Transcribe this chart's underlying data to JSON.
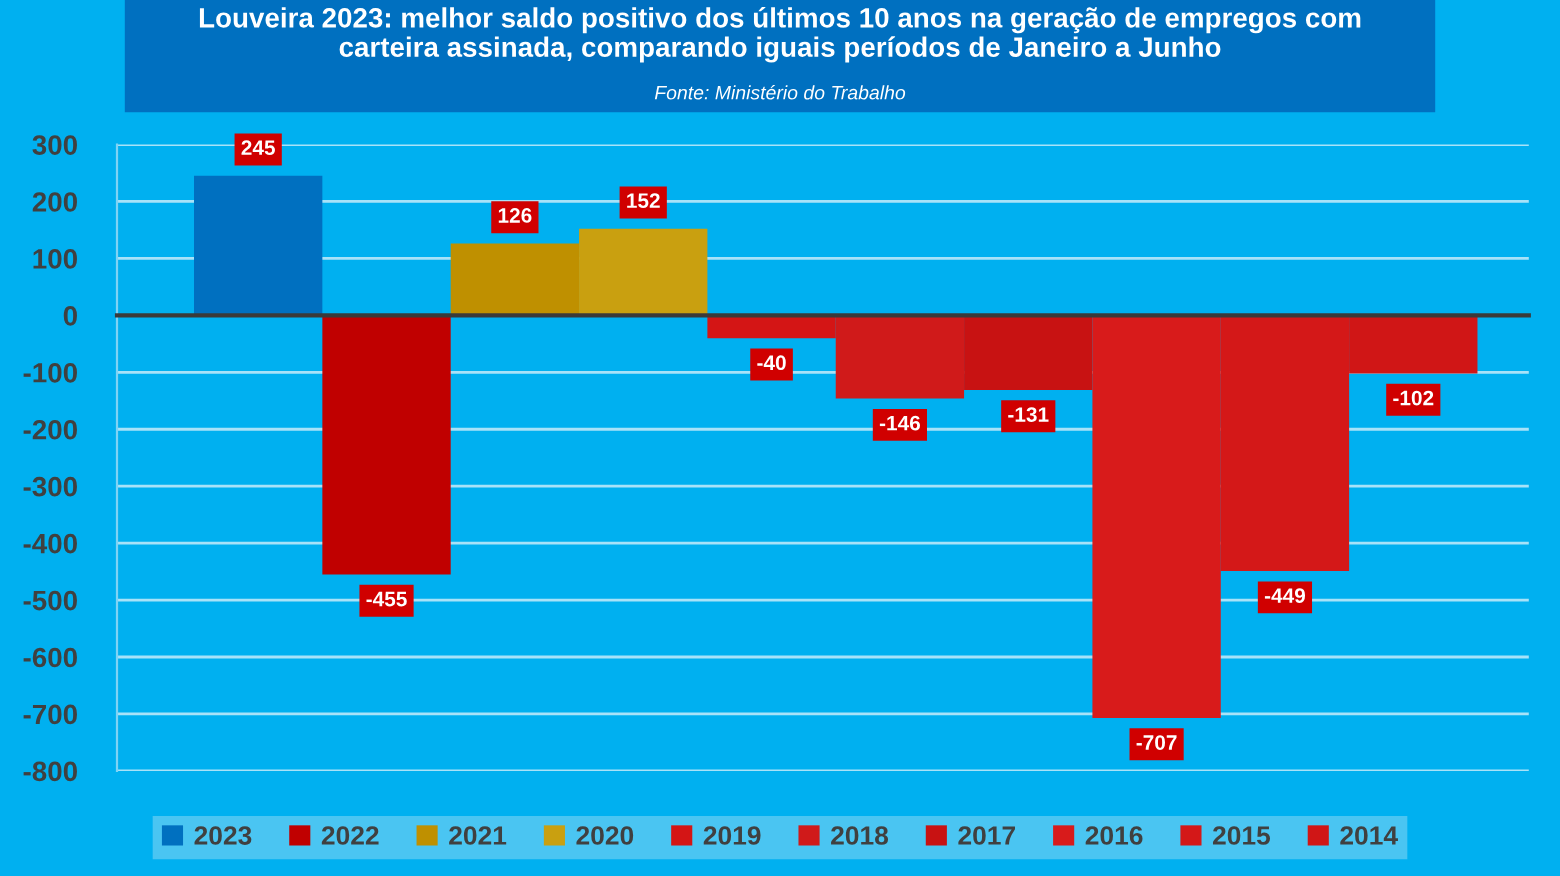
{
  "chart_data": {
    "type": "bar",
    "title": "Louveira 2023: melhor saldo positivo dos últimos 10 anos na geração de empregos com carteira assinada, comparando iguais períodos de Janeiro a Junho",
    "annotations": [
      "Fonte: Ministério do Trabalho"
    ],
    "categories": [
      null,
      null,
      null,
      null,
      null,
      null,
      null,
      null,
      null,
      null
    ],
    "series": [
      {
        "name": "2023",
        "color": "#0070c0",
        "values": [
          245,
          null,
          null,
          null,
          null,
          null,
          null,
          null,
          null,
          null
        ]
      },
      {
        "name": "2022",
        "color": "#c00000",
        "values": [
          null,
          -455,
          null,
          null,
          null,
          null,
          null,
          null,
          null,
          null
        ]
      },
      {
        "name": "2021",
        "color": "#bf9000",
        "values": [
          null,
          null,
          126,
          null,
          null,
          null,
          null,
          null,
          null,
          null
        ]
      },
      {
        "name": "2020",
        "color": "#c9a010",
        "values": [
          null,
          null,
          null,
          152,
          null,
          null,
          null,
          null,
          null,
          null
        ]
      },
      {
        "name": "2019",
        "color": "#d41515",
        "values": [
          null,
          null,
          null,
          null,
          -40,
          null,
          null,
          null,
          null,
          null
        ]
      },
      {
        "name": "2018",
        "color": "#d01a1a",
        "values": [
          null,
          null,
          null,
          null,
          null,
          -146,
          null,
          null,
          null,
          null
        ]
      },
      {
        "name": "2017",
        "color": "#c81212",
        "values": [
          null,
          null,
          null,
          null,
          null,
          null,
          -131,
          null,
          null,
          null
        ]
      },
      {
        "name": "2016",
        "color": "#d81b1b",
        "values": [
          null,
          null,
          null,
          null,
          null,
          null,
          null,
          -707,
          null,
          null
        ]
      },
      {
        "name": "2015",
        "color": "#d41818",
        "values": [
          null,
          null,
          null,
          null,
          null,
          null,
          null,
          null,
          -449,
          null
        ]
      },
      {
        "name": "2014",
        "color": "#d01616",
        "values": [
          null,
          null,
          null,
          null,
          null,
          null,
          null,
          null,
          null,
          -102
        ]
      }
    ],
    "ylim": [
      -800,
      300
    ],
    "yticks": [
      -800,
      -700,
      -600,
      -500,
      -400,
      -300,
      -200,
      -100,
      0,
      100,
      200,
      300
    ],
    "grid": "y",
    "legend": "bottom",
    "data_labels": true
  }
}
